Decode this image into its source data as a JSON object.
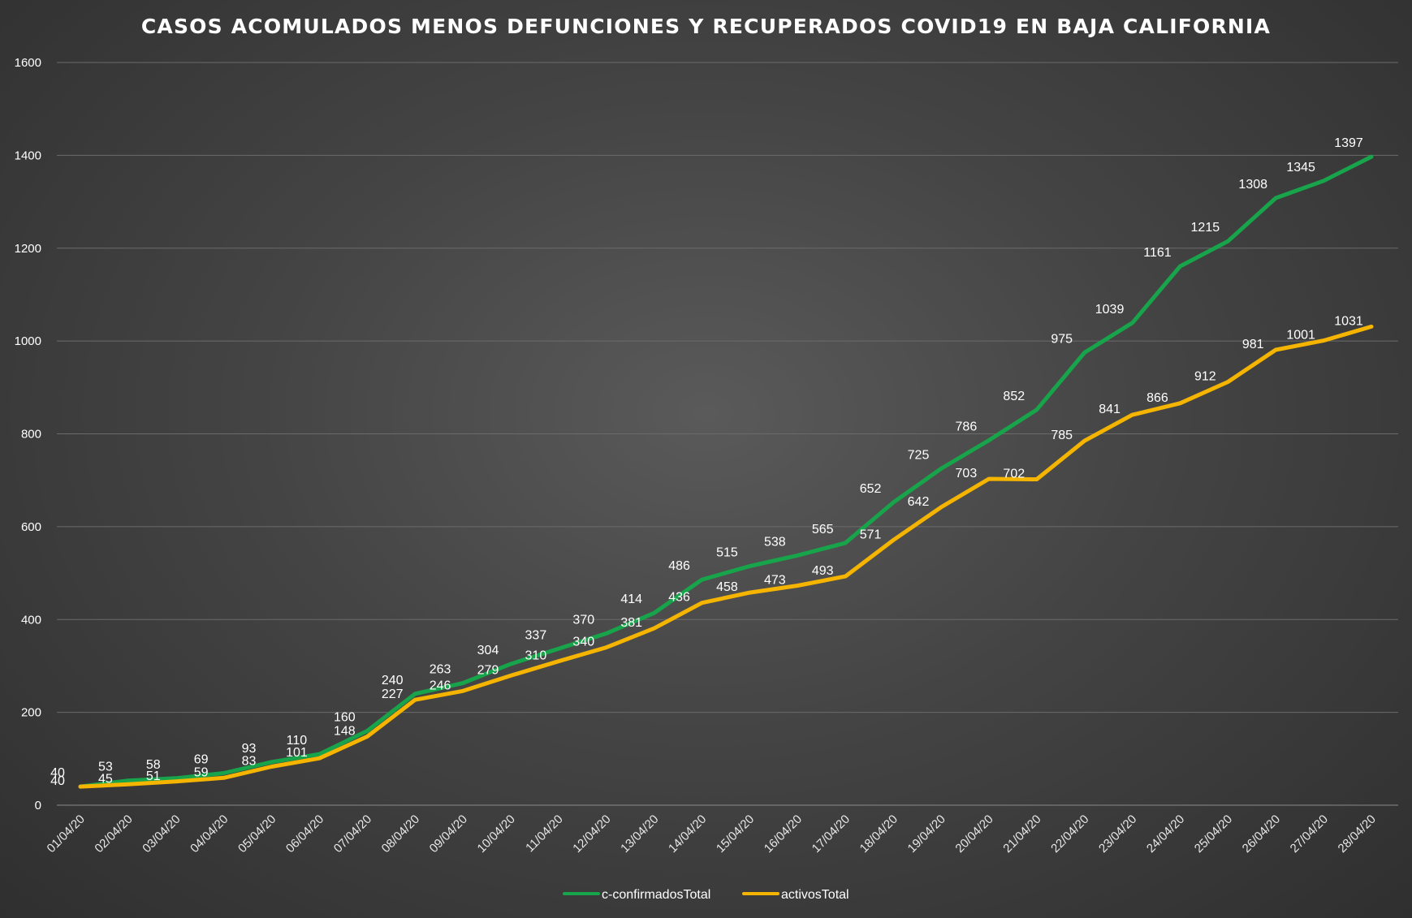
{
  "chart_data": {
    "type": "line",
    "title": "CASOS ACOMULADOS MENOS DEFUNCIONES Y RECUPERADOS COVID19 EN BAJA CALIFORNIA",
    "xlabel": "",
    "ylabel": "",
    "ylim": [
      0,
      1600
    ],
    "yticks": [
      "0",
      "200",
      "400",
      "600",
      "800",
      "1000",
      "1200",
      "1400",
      "1600"
    ],
    "grid": true,
    "legend_position": "bottom",
    "categories": [
      "01/04/20",
      "02/04/20",
      "03/04/20",
      "04/04/20",
      "05/04/20",
      "06/04/20",
      "07/04/20",
      "08/04/20",
      "09/04/20",
      "10/04/20",
      "11/04/20",
      "12/04/20",
      "13/04/20",
      "14/04/20",
      "15/04/20",
      "16/04/20",
      "17/04/20",
      "18/04/20",
      "19/04/20",
      "20/04/20",
      "21/04/20",
      "22/04/20",
      "23/04/20",
      "24/04/20",
      "25/04/20",
      "26/04/20",
      "27/04/20",
      "28/04/20"
    ],
    "series": [
      {
        "name": "c-confirmadosTotal",
        "color": "#17a44a",
        "values": [
          40,
          53,
          58,
          69,
          93,
          110,
          160,
          240,
          263,
          304,
          337,
          370,
          414,
          486,
          515,
          538,
          565,
          652,
          725,
          786,
          852,
          975,
          1039,
          1161,
          1215,
          1308,
          1345,
          1397
        ]
      },
      {
        "name": "activosTotal",
        "color": "#f4b400",
        "values": [
          40,
          45,
          51,
          59,
          83,
          101,
          148,
          227,
          246,
          279,
          310,
          340,
          381,
          436,
          458,
          473,
          493,
          571,
          642,
          703,
          702,
          785,
          841,
          866,
          912,
          981,
          1001,
          1031
        ]
      }
    ]
  }
}
